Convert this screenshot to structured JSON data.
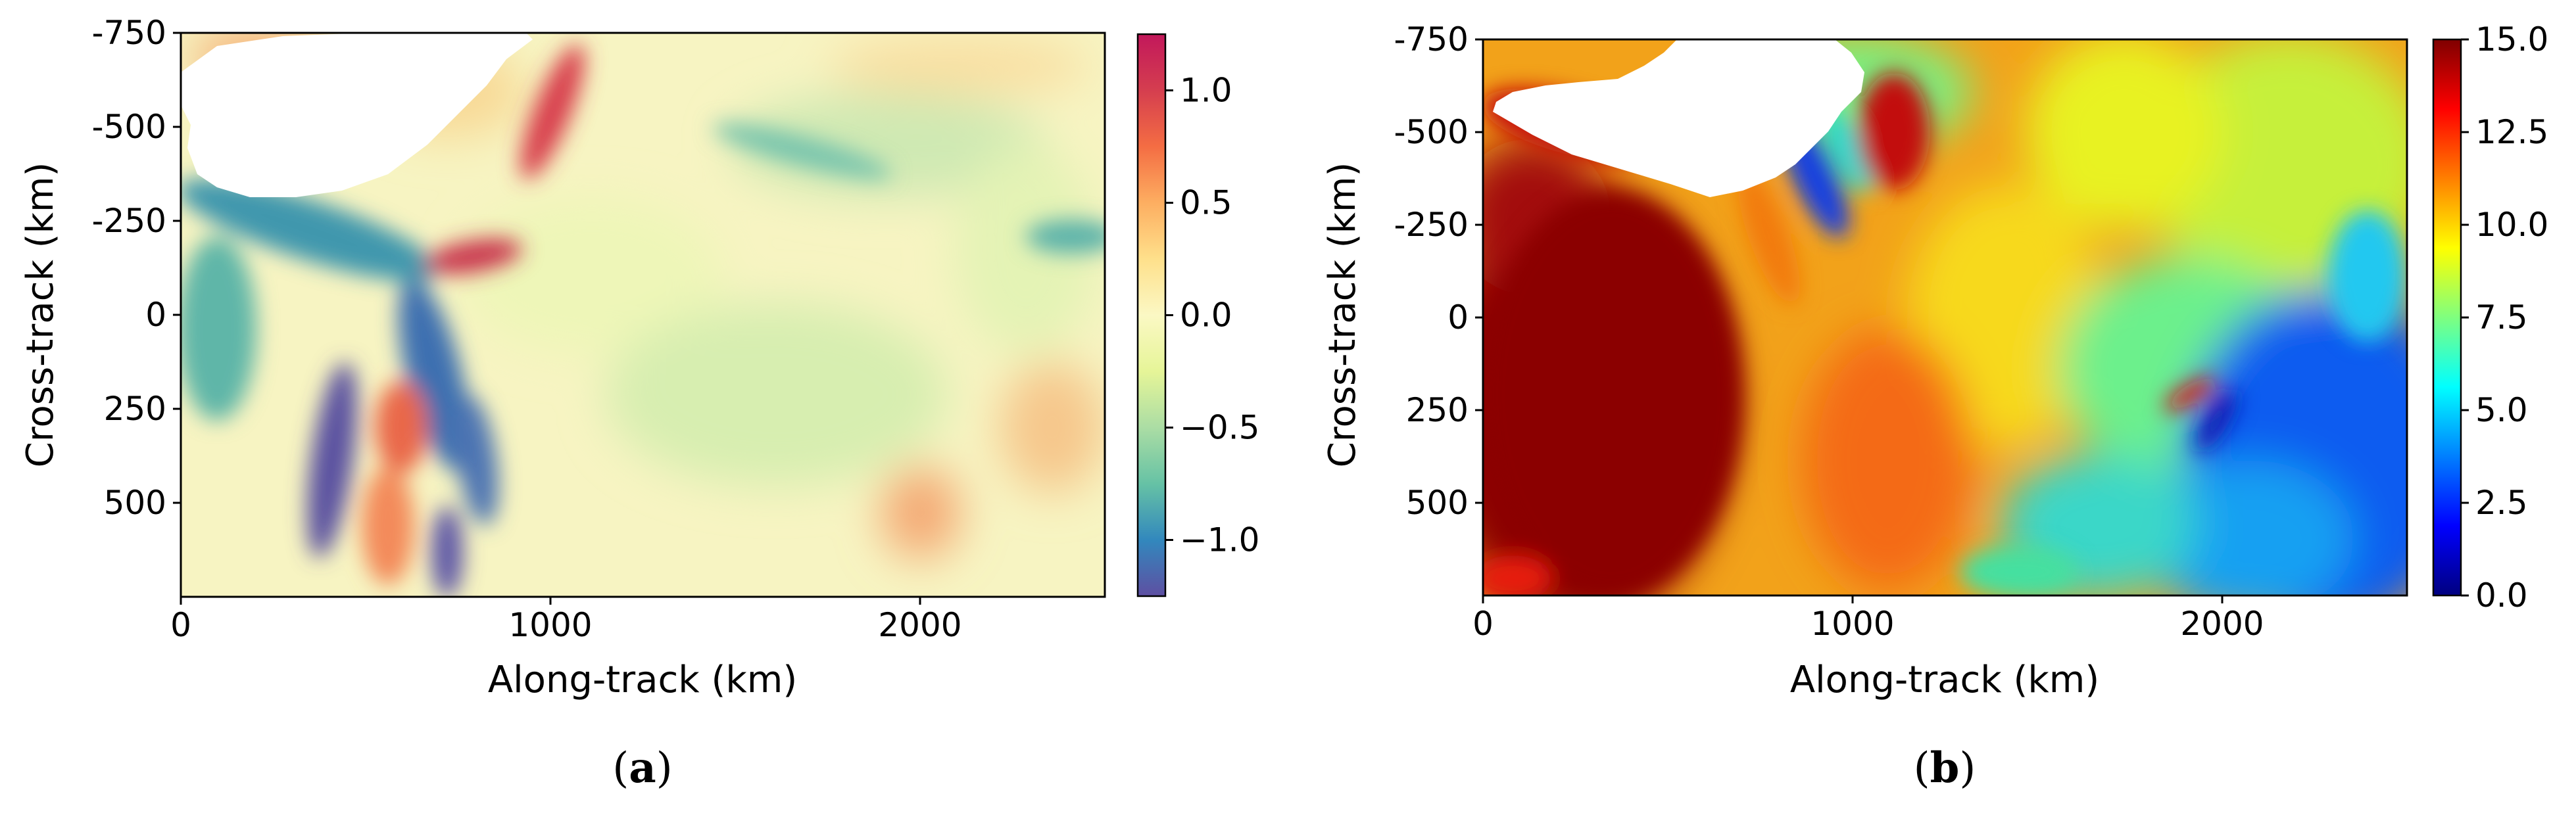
{
  "chart_data": [
    {
      "type": "heatmap",
      "panel_label_prefix": "(",
      "panel_letter": "a",
      "panel_label_suffix": ")",
      "xlabel": "Along-track (km)",
      "ylabel": "Cross-track (km)",
      "xlim": [
        0,
        2500
      ],
      "ylim": [
        750,
        -750
      ],
      "xticks": [
        0,
        1000,
        2000
      ],
      "xtick_labels": [
        "0",
        "1000",
        "2000"
      ],
      "yticks": [
        -750,
        -500,
        -250,
        0,
        250,
        500
      ],
      "ytick_labels": [
        "-750",
        "-500",
        "-250",
        "0",
        "250",
        "500"
      ],
      "colormap": "Spectral_r",
      "colorbar_range": [
        -1.25,
        1.25
      ],
      "colorbar_ticks": [
        1.0,
        0.5,
        0.0,
        -0.5,
        -1.0
      ],
      "colorbar_tick_labels": [
        "1.0",
        "0.5",
        "0.0",
        "−0.5",
        "−1.0"
      ],
      "colormap_stops": [
        "#5e4fa2",
        "#3288bd",
        "#66c2a5",
        "#abdda4",
        "#e6f598",
        "#fbf8c4",
        "#fee08b",
        "#fdae61",
        "#f46d43",
        "#d53e4f",
        "#c2185b"
      ]
    },
    {
      "type": "heatmap",
      "panel_label_prefix": "(",
      "panel_letter": "b",
      "panel_label_suffix": ")",
      "xlabel": "Along-track (km)",
      "ylabel": "Cross-track (km)",
      "xlim": [
        0,
        2500
      ],
      "ylim": [
        750,
        -750
      ],
      "xticks": [
        0,
        1000,
        2000
      ],
      "xtick_labels": [
        "0",
        "1000",
        "2000"
      ],
      "yticks": [
        -750,
        -500,
        -250,
        0,
        250,
        500
      ],
      "ytick_labels": [
        "-750",
        "-500",
        "-250",
        "0",
        "250",
        "500"
      ],
      "colormap": "jet",
      "colorbar_range": [
        0,
        15
      ],
      "colorbar_ticks": [
        15.0,
        12.5,
        10.0,
        7.5,
        5.0,
        2.5,
        0.0
      ],
      "colorbar_tick_labels": [
        "15.0",
        "12.5",
        "10.0",
        "7.5",
        "5.0",
        "2.5",
        "0.0"
      ],
      "colormap_stops": [
        "#00007f",
        "#0000ff",
        "#007fff",
        "#00ffff",
        "#7fff7f",
        "#ffff00",
        "#ff7f00",
        "#ff0000",
        "#7f0000"
      ]
    }
  ]
}
